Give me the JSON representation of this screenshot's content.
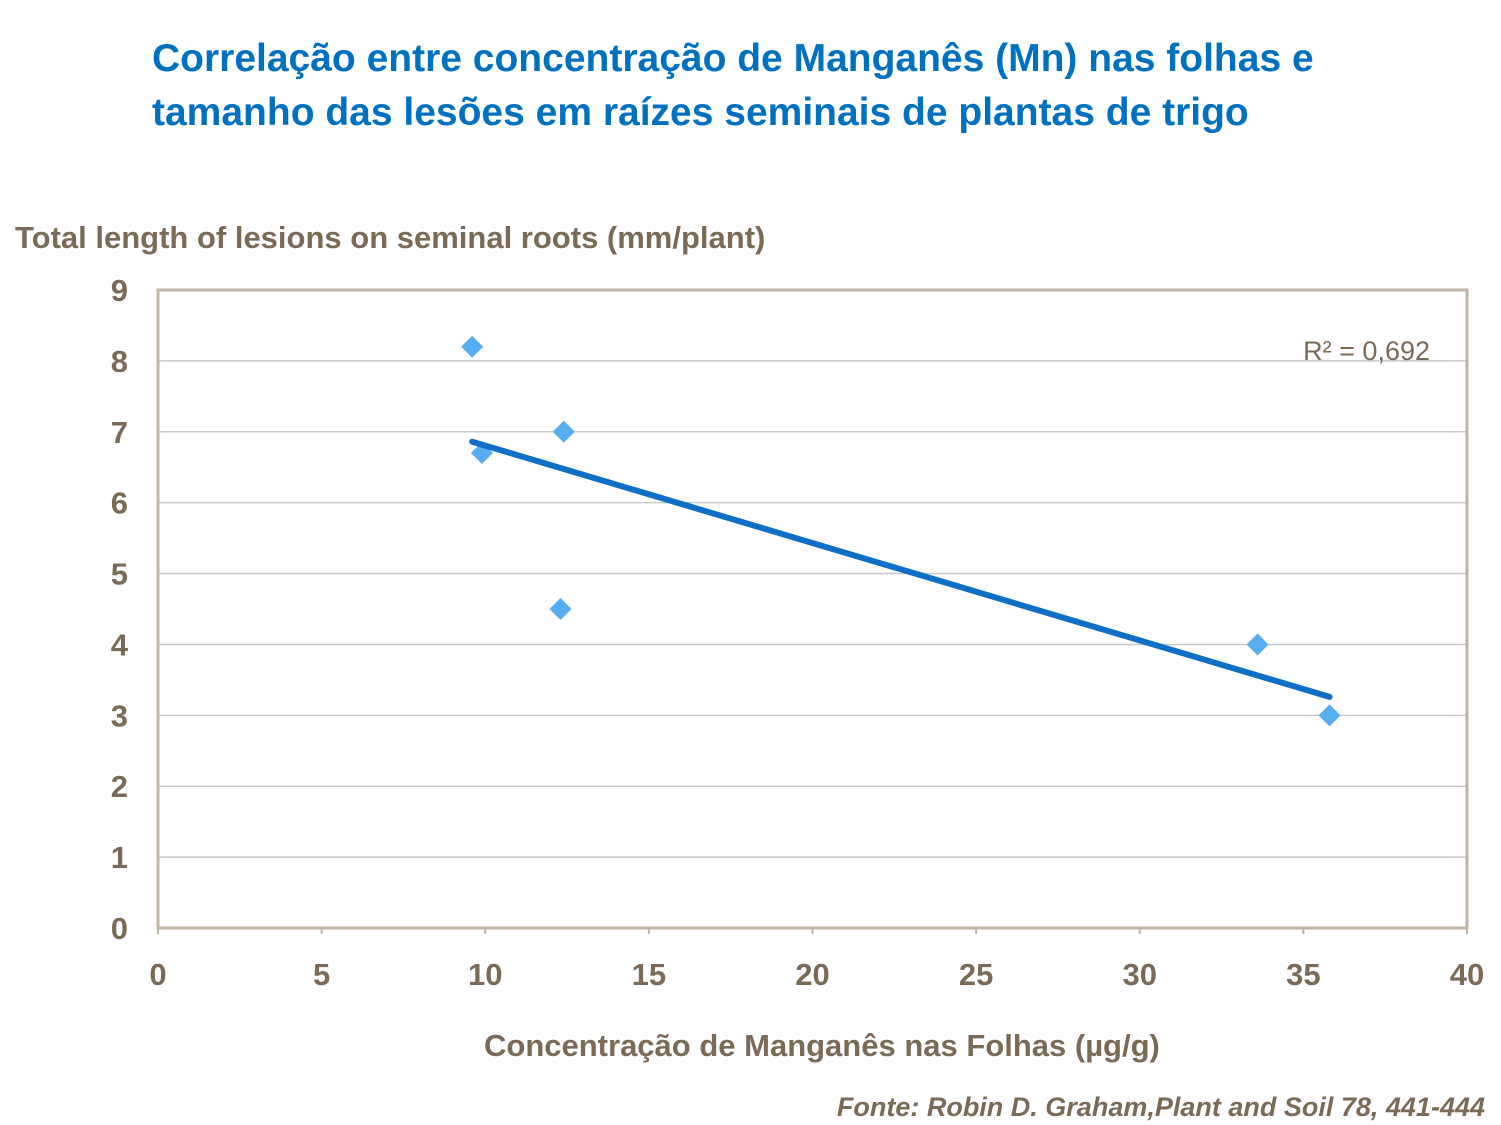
{
  "chart_data": {
    "type": "scatter",
    "title": "Correlação entre concentração de Manganês (Mn) nas folhas e tamanho das lesões em raízes seminais de plantas de trigo",
    "y_label": "Total length of lesions on seminal roots (mm/plant)",
    "x_label": "Concentração de Manganês nas Folhas (µg/g)",
    "source": "Fonte: Robin D. Graham,Plant and Soil 78, 441-444",
    "annotation": "R² = 0,692",
    "x": [
      9.6,
      9.9,
      12.4,
      12.3,
      33.6,
      35.8
    ],
    "values": [
      8.2,
      6.7,
      7.0,
      4.5,
      4.0,
      3.0
    ],
    "color": "#56adf0",
    "trendline": {
      "x": [
        9.6,
        35.8
      ],
      "values": [
        6.86,
        3.26
      ],
      "color": "#0f6fc6"
    },
    "xlim": [
      0,
      40
    ],
    "xticks": [
      0,
      5,
      10,
      15,
      20,
      25,
      30,
      35,
      40
    ],
    "ylim": [
      0,
      9
    ],
    "yticks": [
      0,
      1,
      2,
      3,
      4,
      5,
      6,
      7,
      8,
      9
    ],
    "grid": true
  }
}
